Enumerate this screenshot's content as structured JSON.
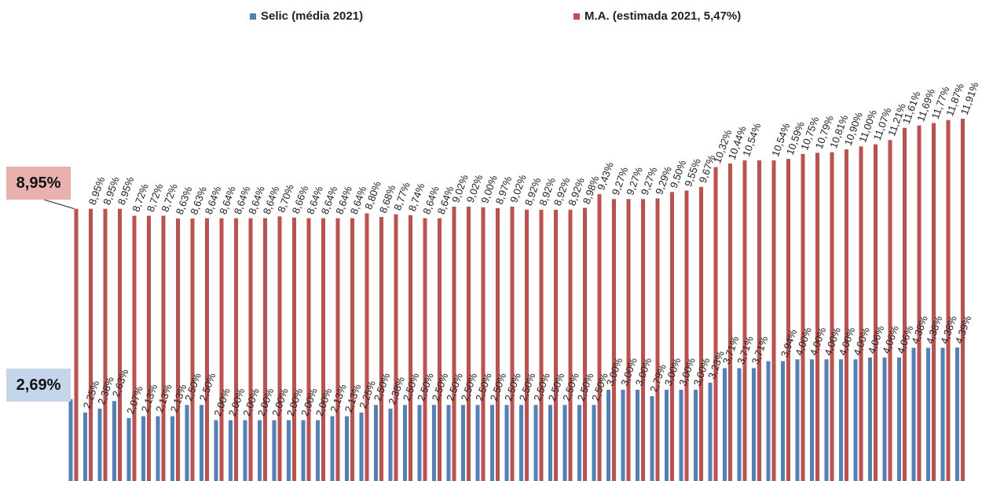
{
  "legend": {
    "selic_label": "Selic (média 2021)",
    "ma_label": "M.A. (estimada 2021, 5,47%)"
  },
  "callouts": {
    "ma_value": "8,95%",
    "selic_value": "2,69%"
  },
  "colors": {
    "selic": "#4f81bd",
    "ma": "#c0504d",
    "ma_callout_bg": "#e8b1ae",
    "selic_callout_bg": "#c5d6ec"
  },
  "chart_data": {
    "type": "bar",
    "grid": false,
    "legend_position": "top",
    "series": [
      {
        "name": "Selic (média 2021)",
        "values": [
          2.69,
          2.25,
          2.38,
          2.63,
          2.07,
          2.13,
          2.13,
          2.13,
          2.5,
          2.5,
          2.0,
          2.0,
          2.0,
          2.0,
          2.0,
          2.0,
          2.0,
          2.0,
          2.13,
          2.13,
          2.25,
          2.5,
          2.38,
          2.5,
          2.5,
          2.5,
          2.5,
          2.5,
          2.5,
          2.5,
          2.5,
          2.5,
          2.5,
          2.5,
          2.5,
          2.5,
          2.5,
          3.0,
          3.0,
          3.0,
          2.79,
          3.0,
          3.0,
          3.0,
          3.23,
          3.71,
          3.71,
          3.71,
          3.94,
          3.94,
          4.0,
          4.0,
          4.0,
          4.0,
          4.0,
          4.06,
          4.06,
          4.06,
          4.38,
          4.38,
          4.38,
          4.39
        ],
        "labels": [
          "",
          "2,25%",
          "2,38%",
          "2,63%",
          "2,07%",
          "2,13%",
          "2,13%",
          "2,13%",
          "2,50%",
          "2,50%",
          "2,00%",
          "2,00%",
          "2,00%",
          "2,00%",
          "2,00%",
          "2,00%",
          "2,00%",
          "2,00%",
          "2,13%",
          "2,13%",
          "2,25%",
          "2,50%",
          "2,38%",
          "2,50%",
          "2,50%",
          "2,50%",
          "2,50%",
          "2,50%",
          "2,50%",
          "2,50%",
          "2,50%",
          "2,50%",
          "2,50%",
          "2,50%",
          "2,50%",
          "2,50%",
          "2,50%",
          "3,00%",
          "3,00%",
          "3,00%",
          "2,79%",
          "3,00%",
          "3,00%",
          "3,00%",
          "3,23%",
          "3,71%",
          "3,71%",
          "3,71%",
          "",
          "3,94%",
          "4,00%",
          "4,00%",
          "4,00%",
          "4,00%",
          "4,00%",
          "4,06%",
          "4,06%",
          "4,06%",
          "4,38%",
          "4,38%",
          "4,38%",
          "4,39%"
        ]
      },
      {
        "name": "M.A. (estimada 2021, 5,47%)",
        "values": [
          8.95,
          8.95,
          8.95,
          8.95,
          8.72,
          8.72,
          8.72,
          8.63,
          8.63,
          8.64,
          8.64,
          8.64,
          8.64,
          8.64,
          8.7,
          8.66,
          8.64,
          8.64,
          8.64,
          8.64,
          8.8,
          8.68,
          8.77,
          8.74,
          8.64,
          8.64,
          9.02,
          9.02,
          9.0,
          8.97,
          9.02,
          8.92,
          8.92,
          8.92,
          8.92,
          8.98,
          9.43,
          9.27,
          9.27,
          9.27,
          9.29,
          9.5,
          9.55,
          9.67,
          10.32,
          10.44,
          10.54,
          10.54,
          10.54,
          10.59,
          10.75,
          10.79,
          10.81,
          10.9,
          11.0,
          11.07,
          11.21,
          11.61,
          11.69,
          11.77,
          11.87,
          11.91
        ],
        "labels": [
          "",
          "8,95%",
          "8,95%",
          "8,95%",
          "8,72%",
          "8,72%",
          "8,72%",
          "8,63%",
          "8,63%",
          "8,64%",
          "8,64%",
          "8,64%",
          "8,64%",
          "8,64%",
          "8,70%",
          "8,66%",
          "8,64%",
          "8,64%",
          "8,64%",
          "8,64%",
          "8,80%",
          "8,68%",
          "8,77%",
          "8,74%",
          "8,64%",
          "8,64%",
          "9,02%",
          "9,02%",
          "9,00%",
          "8,97%",
          "9,02%",
          "8,92%",
          "8,92%",
          "8,92%",
          "8,92%",
          "8,98%",
          "9,43%",
          "9,27%",
          "9,27%",
          "9,27%",
          "9,29%",
          "9,50%",
          "9,55%",
          "9,67%",
          "10,32%",
          "10,44%",
          "10,54%",
          "",
          "10,54%",
          "10,59%",
          "10,75%",
          "10,79%",
          "10,81%",
          "10,90%",
          "11,00%",
          "11,07%",
          "11,21%",
          "11,61%",
          "11,69%",
          "11,77%",
          "11,87%",
          "11,91%"
        ]
      }
    ]
  }
}
